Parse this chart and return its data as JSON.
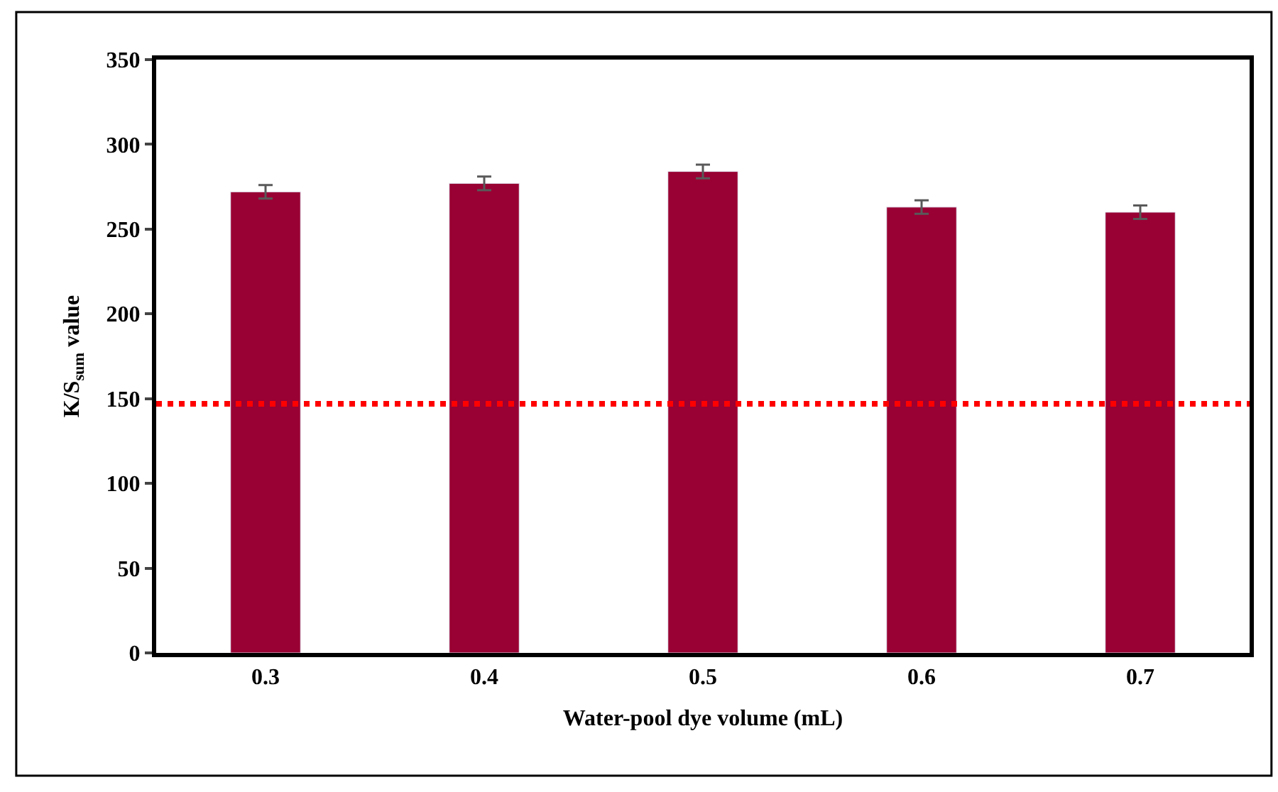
{
  "chart_data": {
    "type": "bar",
    "xlabel": "Water-pool dye volume (mL)",
    "ylabel": "K/S$_{sum}$ value",
    "categories": [
      "0.3",
      "0.4",
      "0.5",
      "0.6",
      "0.7"
    ],
    "series": [
      {
        "color": "#990033",
        "values": [
          272,
          277,
          284,
          263,
          260
        ],
        "errors": [
          4,
          4,
          4,
          4,
          4
        ]
      }
    ],
    "ylim": [
      0,
      350
    ],
    "yticks": [
      0,
      50,
      100,
      150,
      200,
      250,
      300,
      350
    ],
    "legend": false,
    "ref_lines": [
      {
        "axis": "y",
        "value": 147,
        "color": "#ff0000",
        "line_style": "dotted"
      }
    ]
  }
}
